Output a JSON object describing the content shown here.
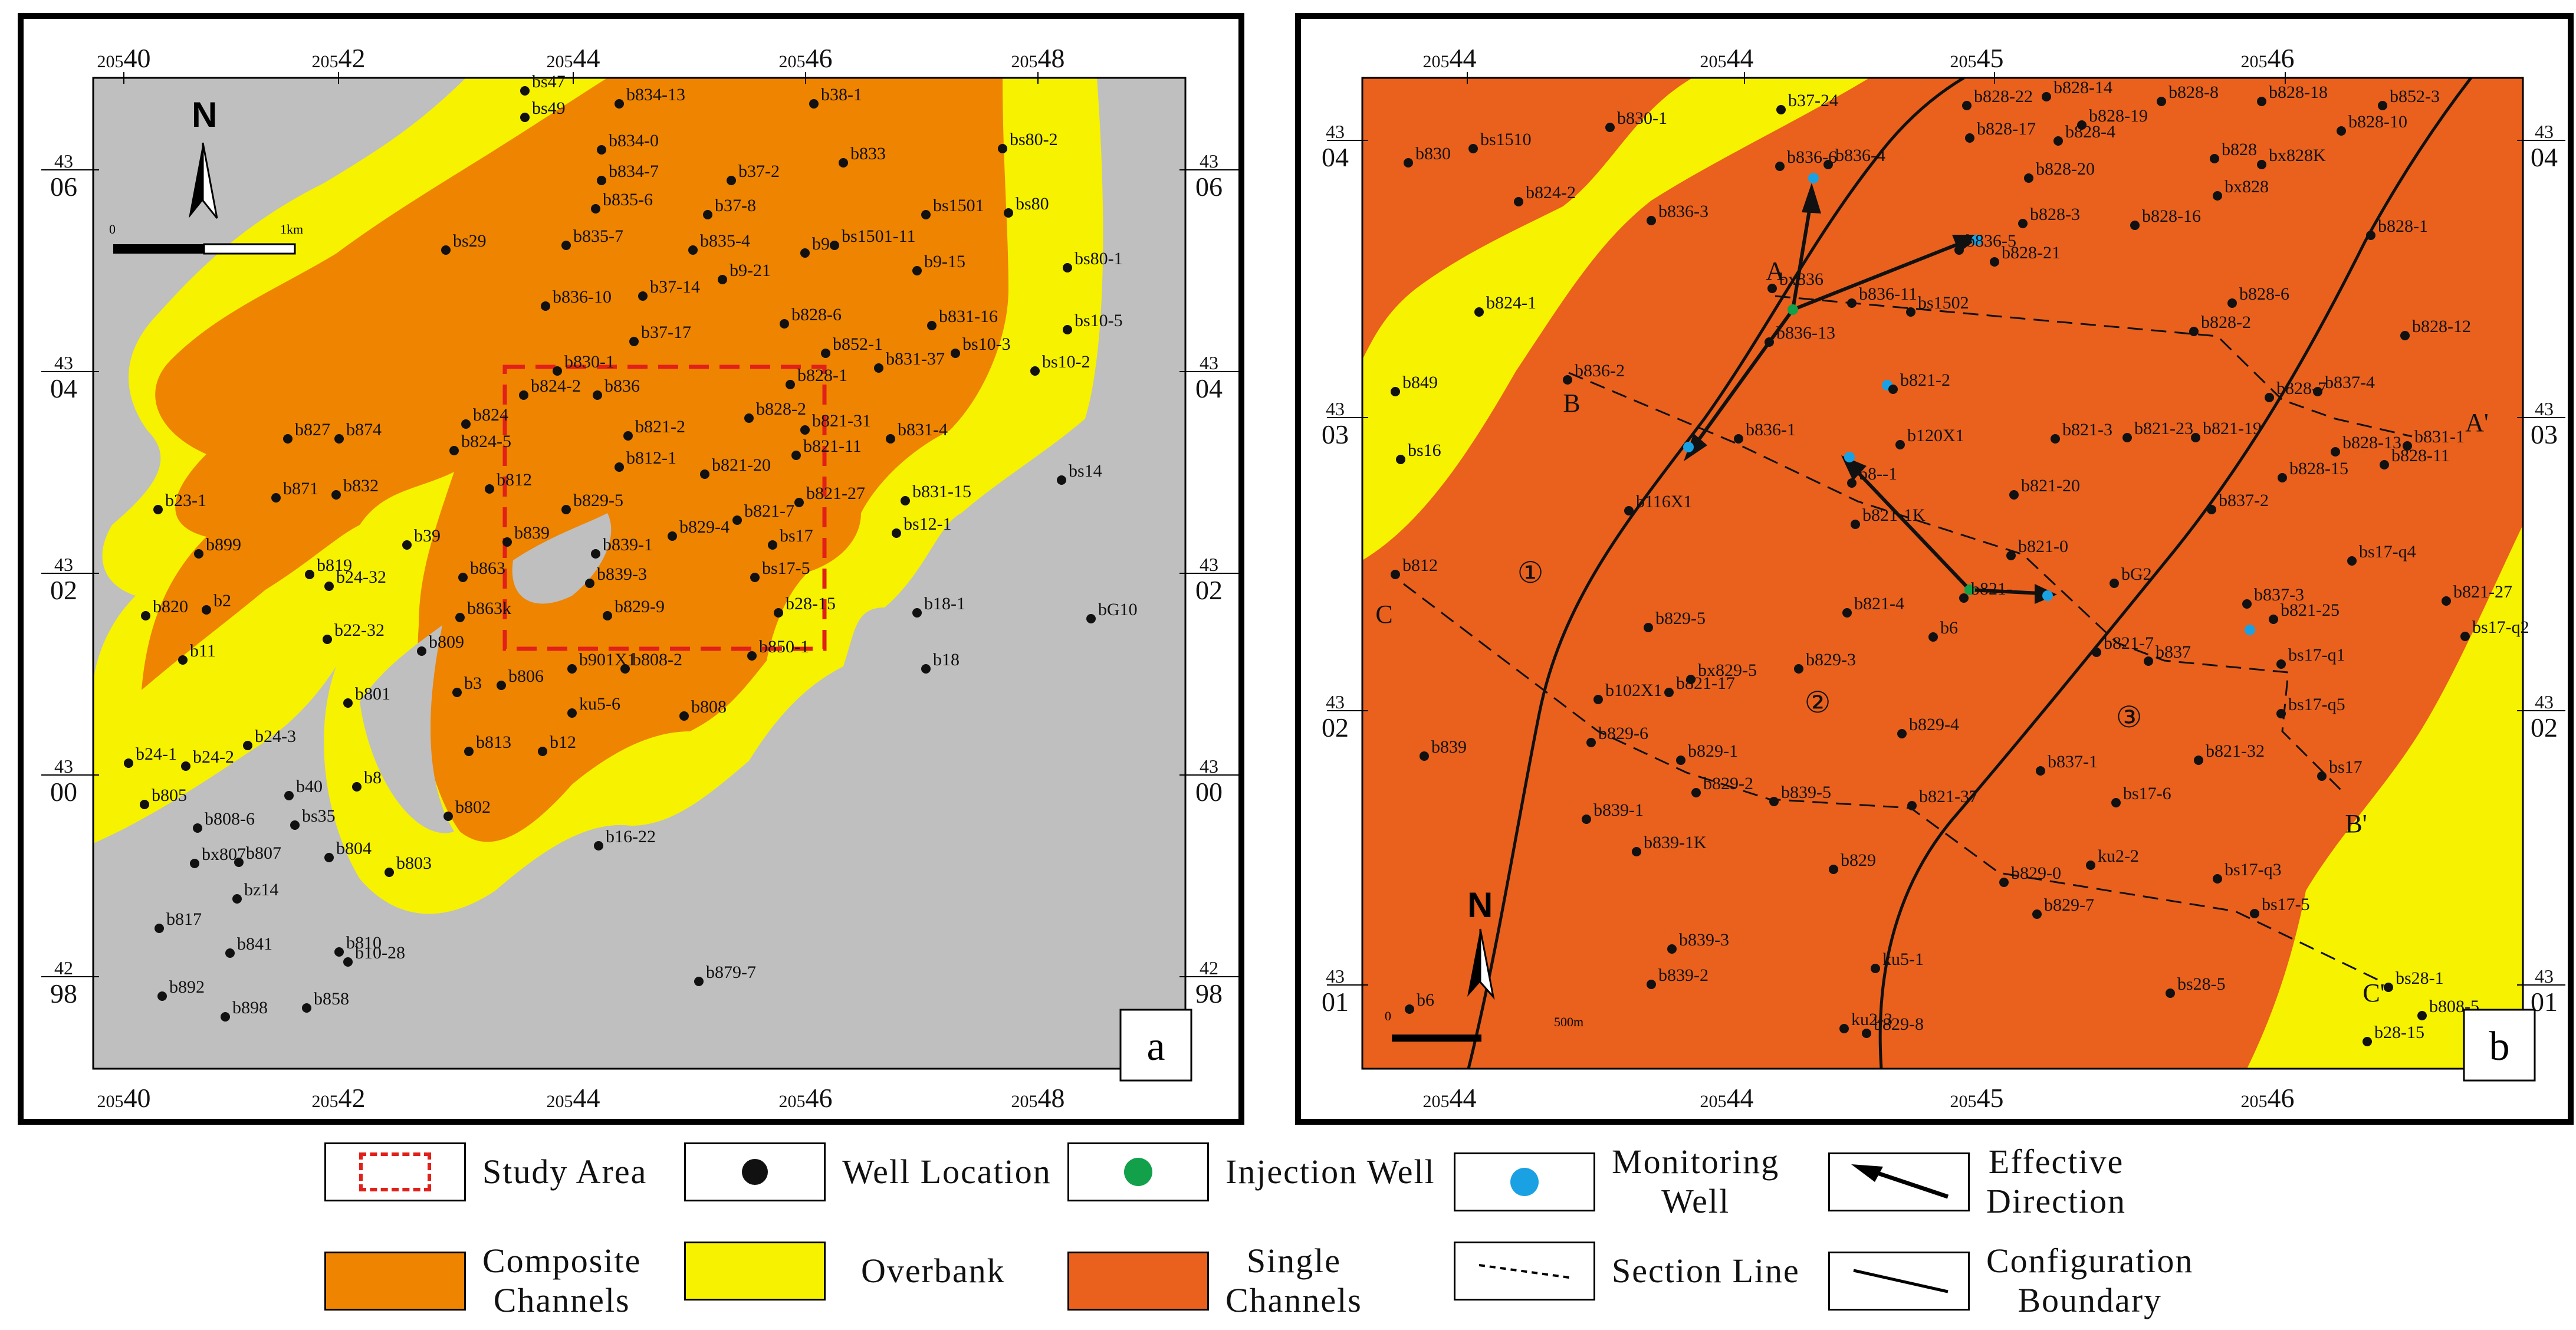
{
  "panel_a": {
    "label": "a",
    "x_ticks_top": [
      "20540",
      "20542",
      "20544",
      "20546",
      "20548"
    ],
    "x_ticks_bottom": [
      "20540",
      "20542",
      "20544",
      "20546",
      "20548"
    ],
    "y_ticks_left": [
      [
        "43",
        "06"
      ],
      [
        "43",
        "04"
      ],
      [
        "43",
        "02"
      ],
      [
        "43",
        "00"
      ],
      [
        "42",
        "98"
      ]
    ],
    "y_ticks_right": [
      [
        "43",
        "06"
      ],
      [
        "43",
        "04"
      ],
      [
        "43",
        "02"
      ],
      [
        "43",
        "00"
      ],
      [
        "42",
        "98"
      ]
    ],
    "north_label": "N",
    "scale_start": "0",
    "scale_end": "1km",
    "wells": [
      {
        "name": "bs47"
      },
      {
        "name": "bs49"
      },
      {
        "name": "b834-13"
      },
      {
        "name": "b38-1"
      },
      {
        "name": "b834-0"
      },
      {
        "name": "b833"
      },
      {
        "name": "bs80-2"
      },
      {
        "name": "b834-7"
      },
      {
        "name": "b37-2"
      },
      {
        "name": "b835-6"
      },
      {
        "name": "b37-8"
      },
      {
        "name": "bs1501"
      },
      {
        "name": "bs80"
      },
      {
        "name": "b835-7"
      },
      {
        "name": "b835-4"
      },
      {
        "name": "b9"
      },
      {
        "name": "bs1501-11"
      },
      {
        "name": "bs29"
      },
      {
        "name": "b9-21"
      },
      {
        "name": "b9-15"
      },
      {
        "name": "bs80-1"
      },
      {
        "name": "b836-10"
      },
      {
        "name": "b37-14"
      },
      {
        "name": "b828-6"
      },
      {
        "name": "b831-16"
      },
      {
        "name": "bs10-5"
      },
      {
        "name": "b37-17"
      },
      {
        "name": "b852-1"
      },
      {
        "name": "bs10-3"
      },
      {
        "name": "b830-1"
      },
      {
        "name": "b831-37"
      },
      {
        "name": "bs10-2"
      },
      {
        "name": "b828-1"
      },
      {
        "name": "b836"
      },
      {
        "name": "b824-2"
      },
      {
        "name": "b824"
      },
      {
        "name": "b828-2"
      },
      {
        "name": "b821-31"
      },
      {
        "name": "b827"
      },
      {
        "name": "b874"
      },
      {
        "name": "b821-2"
      },
      {
        "name": "b831-4"
      },
      {
        "name": "b824-5"
      },
      {
        "name": "b821-11"
      },
      {
        "name": "b812-1"
      },
      {
        "name": "bs14"
      },
      {
        "name": "b871"
      },
      {
        "name": "b832"
      },
      {
        "name": "b812"
      },
      {
        "name": "b821-20"
      },
      {
        "name": "b821-27"
      },
      {
        "name": "b829-5"
      },
      {
        "name": "b831-15"
      },
      {
        "name": "b23-1"
      },
      {
        "name": "b821-7"
      },
      {
        "name": "bs12-1"
      },
      {
        "name": "b839"
      },
      {
        "name": "b829-4"
      },
      {
        "name": "b39"
      },
      {
        "name": "b899"
      },
      {
        "name": "b839-1"
      },
      {
        "name": "bs17"
      },
      {
        "name": "b819"
      },
      {
        "name": "b863"
      },
      {
        "name": "b24-32"
      },
      {
        "name": "bs17-5"
      },
      {
        "name": "b839-3"
      },
      {
        "name": "b2"
      },
      {
        "name": "b820"
      },
      {
        "name": "b863k"
      },
      {
        "name": "b829-9"
      },
      {
        "name": "b18-1"
      },
      {
        "name": "b28-15"
      },
      {
        "name": "bG10"
      },
      {
        "name": "b22-32"
      },
      {
        "name": "b809"
      },
      {
        "name": "b11"
      },
      {
        "name": "b850-1"
      },
      {
        "name": "b901X1"
      },
      {
        "name": "b808-2"
      },
      {
        "name": "b18"
      },
      {
        "name": "b806"
      },
      {
        "name": "b3"
      },
      {
        "name": "b801"
      },
      {
        "name": "ku5-6"
      },
      {
        "name": "b808"
      },
      {
        "name": "b24-3"
      },
      {
        "name": "b813"
      },
      {
        "name": "b12"
      },
      {
        "name": "b24-1"
      },
      {
        "name": "b24-2"
      },
      {
        "name": "b8"
      },
      {
        "name": "b40"
      },
      {
        "name": "b805"
      },
      {
        "name": "b802"
      },
      {
        "name": "bs35"
      },
      {
        "name": "b808-6"
      },
      {
        "name": "b16-22"
      },
      {
        "name": "b804"
      },
      {
        "name": "bx807"
      },
      {
        "name": "b807"
      },
      {
        "name": "b803"
      },
      {
        "name": "bz14"
      },
      {
        "name": "b817"
      },
      {
        "name": "b810"
      },
      {
        "name": "b841"
      },
      {
        "name": "b10-28"
      },
      {
        "name": "b879-7"
      },
      {
        "name": "b892"
      },
      {
        "name": "b858"
      },
      {
        "name": "b898"
      }
    ]
  },
  "panel_b": {
    "label": "b",
    "x_ticks_top": [
      "20544",
      "20544",
      "20545",
      "20546"
    ],
    "x_ticks_bottom": [
      "20544",
      "20544",
      "20545",
      "20546"
    ],
    "y_ticks_left": [
      [
        "43",
        "04"
      ],
      [
        "43",
        "03"
      ],
      [
        "43",
        "02"
      ],
      [
        "43",
        "01"
      ]
    ],
    "y_ticks_right": [
      [
        "43",
        "04"
      ],
      [
        "43",
        "03"
      ],
      [
        "43",
        "02"
      ],
      [
        "43",
        "01"
      ]
    ],
    "north_label": "N",
    "scale_start": "0",
    "scale_end": "500m",
    "zones": [
      "①",
      "②",
      "③"
    ],
    "section_labels": [
      "A",
      "A'",
      "B",
      "B'",
      "C",
      "C'"
    ],
    "wells": [
      {
        "name": "b37-24"
      },
      {
        "name": "b828-22"
      },
      {
        "name": "b828-14"
      },
      {
        "name": "b828-8"
      },
      {
        "name": "b828-18"
      },
      {
        "name": "b852-3"
      },
      {
        "name": "b830-1"
      },
      {
        "name": "b828-19"
      },
      {
        "name": "b828-17"
      },
      {
        "name": "b828-4"
      },
      {
        "name": "b828-10"
      },
      {
        "name": "b830"
      },
      {
        "name": "bs1510"
      },
      {
        "name": "b836-6"
      },
      {
        "name": "b836-4"
      },
      {
        "name": "b828"
      },
      {
        "name": "bx828K"
      },
      {
        "name": "b828-20"
      },
      {
        "name": "bx828"
      },
      {
        "name": "b824-2"
      },
      {
        "name": "b836-3"
      },
      {
        "name": "b828-3"
      },
      {
        "name": "b828-16"
      },
      {
        "name": "b828-1"
      },
      {
        "name": "b836-5"
      },
      {
        "name": "b828-21"
      },
      {
        "name": "b828-6"
      },
      {
        "name": "bx836"
      },
      {
        "name": "b836-11"
      },
      {
        "name": "bs1502"
      },
      {
        "name": "b824-1"
      },
      {
        "name": "b828-12"
      },
      {
        "name": "b836-13"
      },
      {
        "name": "b828-2"
      },
      {
        "name": "b836-2"
      },
      {
        "name": "b821-2"
      },
      {
        "name": "b828-7"
      },
      {
        "name": "b837-4"
      },
      {
        "name": "b849"
      },
      {
        "name": "b836-1"
      },
      {
        "name": "b120X1"
      },
      {
        "name": "b821-3"
      },
      {
        "name": "b821-23"
      },
      {
        "name": "b821-19"
      },
      {
        "name": "b828-13"
      },
      {
        "name": "b831-1"
      },
      {
        "name": "bs16"
      },
      {
        "name": "b828-15"
      },
      {
        "name": "b828-11"
      },
      {
        "name": "b821-20"
      },
      {
        "name": "b837-2"
      },
      {
        "name": "b116X1"
      },
      {
        "name": "b821-1K"
      },
      {
        "name": "b821-0"
      },
      {
        "name": "bs17-q4"
      },
      {
        "name": "b812"
      },
      {
        "name": "bG2"
      },
      {
        "name": "b837-3"
      },
      {
        "name": "b821-27"
      },
      {
        "name": "b829-5"
      },
      {
        "name": "b821-4"
      },
      {
        "name": "b6"
      },
      {
        "name": "b821-25"
      },
      {
        "name": "b821-7"
      },
      {
        "name": "b837"
      },
      {
        "name": "bs17-q1"
      },
      {
        "name": "bs17-q2"
      },
      {
        "name": "bx829-5"
      },
      {
        "name": "b829-3"
      },
      {
        "name": "b821-17"
      },
      {
        "name": "b102X1"
      },
      {
        "name": "bs17-q5"
      },
      {
        "name": "b829-4"
      },
      {
        "name": "b839"
      },
      {
        "name": "b829-6"
      },
      {
        "name": "b829-1"
      },
      {
        "name": "b821-32"
      },
      {
        "name": "bs17"
      },
      {
        "name": "b837-1"
      },
      {
        "name": "b829-2"
      },
      {
        "name": "b839-5"
      },
      {
        "name": "b821-37"
      },
      {
        "name": "bs17-6"
      },
      {
        "name": "b839-1"
      },
      {
        "name": "b839-1K"
      },
      {
        "name": "b829"
      },
      {
        "name": "ku2-2"
      },
      {
        "name": "b829-0"
      },
      {
        "name": "bs17-q3"
      },
      {
        "name": "bs17-5"
      },
      {
        "name": "b829-7"
      },
      {
        "name": "b839-3"
      },
      {
        "name": "ku5-1"
      },
      {
        "name": "bs28-1"
      },
      {
        "name": "b839-2"
      },
      {
        "name": "bs28-5"
      },
      {
        "name": "b808-5"
      },
      {
        "name": "b6"
      },
      {
        "name": "ku2-3"
      },
      {
        "name": "b829-8"
      },
      {
        "name": "b28-15"
      },
      {
        "name": "b821-"
      },
      {
        "name": "b8--1"
      }
    ]
  },
  "legend": {
    "study_area": "Study  Area",
    "well_location": "Well Location",
    "injection_well": "Injection Well",
    "monitoring_well": "Monitoring\nWell",
    "effective_direction": "Effective\nDirection",
    "composite_channels": "Composite\nChannels",
    "overbank": "Overbank",
    "single_channels": "Single\nChannels",
    "section_line": "Section Line",
    "configuration_boundary": "Configuration\nBoundary"
  },
  "colors": {
    "composite_channels": "#ee8400",
    "overbank": "#f6f200",
    "single_channels": "#e9611d",
    "background_gray": "#bfbfbf",
    "study_area_border": "#e1201a",
    "injection_well": "#12a04a",
    "monitoring_well": "#1aa1e3",
    "well": "#111111"
  }
}
